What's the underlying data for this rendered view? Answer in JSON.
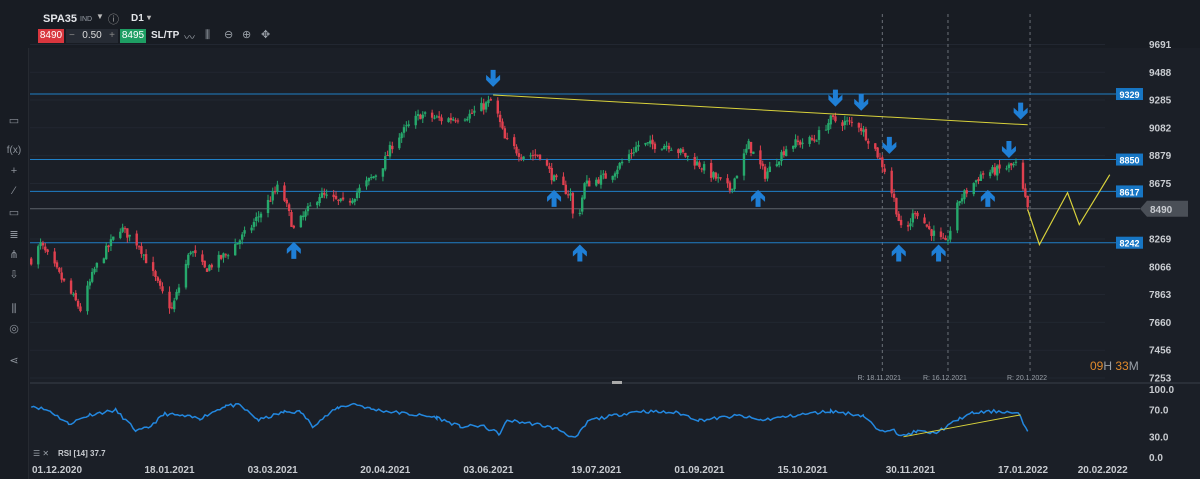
{
  "toolbar": {
    "symbol": "SPA35",
    "symbol_type": "IND",
    "timeframe": "D1",
    "sell_price": "8490",
    "quantity": "0.50",
    "buy_price": "8495",
    "minus": "−",
    "plus": "+",
    "sltp_label": "SL/TP",
    "icons": [
      "line-chart-icon",
      "candles-icon",
      "zoom-out-icon",
      "zoom-in-icon",
      "crosshair-icon",
      "info-icon",
      "dropdown-icon"
    ]
  },
  "sidebar": {
    "icons": [
      "panel-icon",
      "function-icon",
      "crosshair-icon",
      "trendline-icon",
      "rectangle-icon",
      "fibonacci-icon",
      "pitchfork-icon",
      "download-icon",
      "indicators-icon",
      "layers-icon",
      "share-icon"
    ],
    "fx_label": "f(x)"
  },
  "countdown": {
    "hours": "09",
    "h": "H",
    "minutes": "33",
    "m": "M"
  },
  "colors": {
    "background": "#1b1f27",
    "bull": "#26a96c",
    "bear": "#e0404f",
    "level_line": "#1f7fc6",
    "level_badge": "#1776c4",
    "trendline": "#d9d23b",
    "rsi": "#2388e0",
    "arrow": "#1f7fd6"
  },
  "chart_data": [
    {
      "type": "candlestick",
      "symbol": "SPA35",
      "timeframe": "D1",
      "ylim": [
        7253,
        9691
      ],
      "y_ticks": [
        "9691",
        "9488",
        "9285",
        "9082",
        "8879",
        "8675",
        "8269",
        "8066",
        "7863",
        "7660",
        "7456",
        "7253"
      ],
      "x_ticks": [
        "01.12.2020",
        "18.01.2021",
        "03.03.2021",
        "20.04.2021",
        "03.06.2021",
        "19.07.2021",
        "01.09.2021",
        "15.10.2021",
        "30.11.2021",
        "17.01.2022",
        "20.02.2022"
      ],
      "x_range": [
        "2020-11-20",
        "2022-03-05"
      ],
      "current_price": "8490",
      "close_path": [
        [
          "2020-11-20",
          8118
        ],
        [
          "2020-11-24",
          8228
        ],
        [
          "2020-12-11",
          7754
        ],
        [
          "2020-12-17",
          8046
        ],
        [
          "2020-12-28",
          8352
        ],
        [
          "2021-01-05",
          8228
        ],
        [
          "2021-01-14",
          7900
        ],
        [
          "2021-01-19",
          7754
        ],
        [
          "2021-01-27",
          8192
        ],
        [
          "2021-02-02",
          8046
        ],
        [
          "2021-02-11",
          8155
        ],
        [
          "2021-02-21",
          8338
        ],
        [
          "2021-03-06",
          8666
        ],
        [
          "2021-03-12",
          8338
        ],
        [
          "2021-03-23",
          8593
        ],
        [
          "2021-04-03",
          8520
        ],
        [
          "2021-04-09",
          8630
        ],
        [
          "2021-04-18",
          8776
        ],
        [
          "2021-04-24",
          8995
        ],
        [
          "2021-05-05",
          9177
        ],
        [
          "2021-05-15",
          9140
        ],
        [
          "2021-05-26",
          9177
        ],
        [
          "2021-06-05",
          9286
        ],
        [
          "2021-06-10",
          8995
        ],
        [
          "2021-06-17",
          8885
        ],
        [
          "2021-06-25",
          8885
        ],
        [
          "2021-07-01",
          8703
        ],
        [
          "2021-07-08",
          8593
        ],
        [
          "2021-07-10",
          8301
        ],
        [
          "2021-07-14",
          8666
        ],
        [
          "2021-07-25",
          8739
        ],
        [
          "2021-08-06",
          8958
        ],
        [
          "2021-08-19",
          8958
        ],
        [
          "2021-09-01",
          8812
        ],
        [
          "2021-09-14",
          8630
        ],
        [
          "2021-09-22",
          8958
        ],
        [
          "2021-09-29",
          8739
        ],
        [
          "2021-10-09",
          8958
        ],
        [
          "2021-10-20",
          8995
        ],
        [
          "2021-10-27",
          9140
        ],
        [
          "2021-11-08",
          9104
        ],
        [
          "2021-11-15",
          8922
        ],
        [
          "2021-11-19",
          8776
        ],
        [
          "2021-11-23",
          8557
        ],
        [
          "2021-11-27",
          8265
        ],
        [
          "2021-12-02",
          8484
        ],
        [
          "2021-12-08",
          8338
        ],
        [
          "2021-12-15",
          8228
        ],
        [
          "2021-12-21",
          8557
        ],
        [
          "2021-12-30",
          8739
        ],
        [
          "2022-01-07",
          8776
        ],
        [
          "2022-01-14",
          8812
        ],
        [
          "2022-01-19",
          8484
        ]
      ],
      "levels": [
        {
          "label": "9329",
          "value": 9329
        },
        {
          "label": "8850",
          "value": 8850
        },
        {
          "label": "8617",
          "value": 8617
        },
        {
          "label": "8242",
          "value": 8242
        }
      ],
      "trendline": [
        [
          "2021-06-05",
          9322
        ],
        [
          "2022-01-19",
          9104
        ]
      ],
      "projection": [
        [
          "2022-01-19",
          8484
        ],
        [
          "2022-01-24",
          8228
        ],
        [
          "2022-02-05",
          8608
        ],
        [
          "2022-02-10",
          8374
        ],
        [
          "2022-02-23",
          8739
        ]
      ],
      "arrows": [
        {
          "dir": "down",
          "date": "2021-06-05",
          "price": 9440
        },
        {
          "dir": "down",
          "date": "2021-10-29",
          "price": 9295
        },
        {
          "dir": "down",
          "date": "2021-11-09",
          "price": 9265
        },
        {
          "dir": "down",
          "date": "2021-11-21",
          "price": 8950
        },
        {
          "dir": "down",
          "date": "2022-01-11",
          "price": 8920
        },
        {
          "dir": "down",
          "date": "2022-01-16",
          "price": 9200
        },
        {
          "dir": "up",
          "date": "2021-03-12",
          "price": 8190
        },
        {
          "dir": "up",
          "date": "2021-07-01",
          "price": 8570
        },
        {
          "dir": "up",
          "date": "2021-07-12",
          "price": 8170
        },
        {
          "dir": "up",
          "date": "2021-09-26",
          "price": 8570
        },
        {
          "dir": "up",
          "date": "2021-11-25",
          "price": 8170
        },
        {
          "dir": "up",
          "date": "2021-12-12",
          "price": 8170
        },
        {
          "dir": "up",
          "date": "2022-01-02",
          "price": 8570
        }
      ],
      "reference_lines": [
        {
          "date": "2021-11-18",
          "label": "R: 18.11.2021"
        },
        {
          "date": "2021-12-16",
          "label": "R: 16.12.2021"
        },
        {
          "date": "2022-01-20",
          "label": "R: 20.1.2022"
        }
      ]
    },
    {
      "type": "line",
      "indicator": "RSI",
      "label": "RSI [14] 37.7",
      "ylim": [
        0,
        100
      ],
      "y_ticks": [
        "100.0",
        "70.0",
        "30.0",
        "0.0"
      ],
      "series": [
        [
          "2020-11-20",
          75.7
        ],
        [
          "2020-11-28",
          67.6
        ],
        [
          "2020-12-06",
          48.6
        ],
        [
          "2020-12-15",
          62.2
        ],
        [
          "2020-12-26",
          68.9
        ],
        [
          "2021-01-04",
          37.8
        ],
        [
          "2021-01-09",
          43.2
        ],
        [
          "2021-01-16",
          63.5
        ],
        [
          "2021-01-31",
          56.8
        ],
        [
          "2021-02-11",
          75.7
        ],
        [
          "2021-02-17",
          75.7
        ],
        [
          "2021-02-25",
          54.1
        ],
        [
          "2021-03-08",
          66.2
        ],
        [
          "2021-03-15",
          66.2
        ],
        [
          "2021-03-20",
          45.9
        ],
        [
          "2021-03-31",
          73.0
        ],
        [
          "2021-04-07",
          78.4
        ],
        [
          "2021-04-14",
          70.3
        ],
        [
          "2021-04-26",
          64.9
        ],
        [
          "2021-05-12",
          58.1
        ],
        [
          "2021-05-22",
          44.6
        ],
        [
          "2021-05-31",
          45.9
        ],
        [
          "2021-06-08",
          33.8
        ],
        [
          "2021-06-11",
          54.1
        ],
        [
          "2021-06-25",
          47.3
        ],
        [
          "2021-07-03",
          40.5
        ],
        [
          "2021-07-10",
          27.0
        ],
        [
          "2021-07-16",
          54.1
        ],
        [
          "2021-08-06",
          67.6
        ],
        [
          "2021-08-23",
          64.9
        ],
        [
          "2021-09-01",
          54.1
        ],
        [
          "2021-09-18",
          60.8
        ],
        [
          "2021-09-27",
          54.1
        ],
        [
          "2021-10-14",
          62.2
        ],
        [
          "2021-10-27",
          67.6
        ],
        [
          "2021-11-10",
          60.8
        ],
        [
          "2021-11-17",
          36.5
        ],
        [
          "2021-11-23",
          43.2
        ],
        [
          "2021-11-25",
          29.7
        ],
        [
          "2021-12-03",
          37.8
        ],
        [
          "2021-12-10",
          35.1
        ],
        [
          "2021-12-15",
          43.2
        ],
        [
          "2021-12-21",
          56.8
        ],
        [
          "2021-12-27",
          64.9
        ],
        [
          "2022-01-07",
          67.6
        ],
        [
          "2022-01-15",
          63.5
        ],
        [
          "2022-01-19",
          37.7
        ]
      ],
      "trendline": [
        [
          "2021-11-27",
          29.7
        ],
        [
          "2022-01-16",
          62.0
        ]
      ]
    }
  ]
}
